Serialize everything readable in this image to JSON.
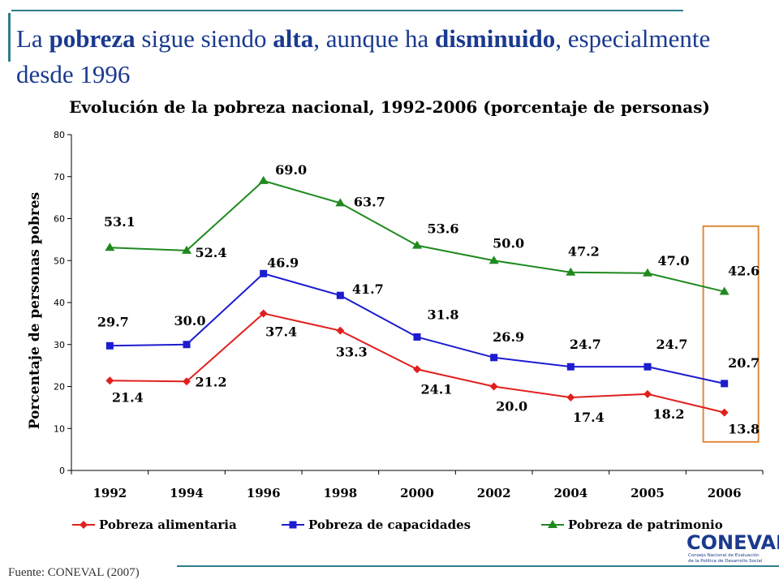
{
  "slide": {
    "headline_parts": [
      {
        "text": "La ",
        "bold": false
      },
      {
        "text": "pobreza",
        "bold": true
      },
      {
        "text": " sigue siendo ",
        "bold": false
      },
      {
        "text": "alta",
        "bold": true
      },
      {
        "text": ", aunque ha ",
        "bold": false
      },
      {
        "text": "disminuido",
        "bold": true
      },
      {
        "text": ", especialmente desde 1996",
        "bold": false
      }
    ],
    "source": "Fuente: CONEVAL (2007)",
    "logo": {
      "name": "CONEVAL",
      "subtitle_line1": "Consejo Nacional de Evaluación",
      "subtitle_line2": "de la Política de Desarrollo Social"
    }
  },
  "chart_data": {
    "type": "line",
    "title": "Evolución de la pobreza nacional, 1992-2006 (porcentaje de personas)",
    "xlabel": "",
    "ylabel": "Porcentaje de personas pobres",
    "categories": [
      "1992",
      "1994",
      "1996",
      "1998",
      "2000",
      "2002",
      "2004",
      "2005",
      "2006"
    ],
    "ylim": [
      0,
      80
    ],
    "yticks": [
      0,
      10,
      20,
      30,
      40,
      50,
      60,
      70,
      80
    ],
    "grid": false,
    "legend_position": "bottom",
    "highlight_category": "2006",
    "highlight_color": "#e08a3c",
    "series": [
      {
        "name": "Pobreza alimentaria",
        "color": "#e0201e",
        "marker": "diamond",
        "values": [
          21.4,
          21.2,
          37.4,
          33.3,
          24.1,
          20.0,
          17.4,
          18.2,
          13.8
        ],
        "labels": [
          "21.4",
          "21.2",
          "37.4",
          "33.3",
          "24.1",
          "20.0",
          "17.4",
          "18.2",
          "13.8"
        ]
      },
      {
        "name": "Pobreza de capacidades",
        "color": "#1c1cd0",
        "marker": "square",
        "values": [
          29.7,
          30.0,
          46.9,
          41.7,
          31.8,
          26.9,
          24.7,
          24.7,
          20.7
        ],
        "labels": [
          "29.7",
          "30.0",
          "46.9",
          "41.7",
          "31.8",
          "26.9",
          "24.7",
          "24.7",
          "20.7"
        ]
      },
      {
        "name": "Pobreza de patrimonio",
        "color": "#1e8a1e",
        "marker": "triangle",
        "values": [
          53.1,
          52.4,
          69.0,
          63.7,
          53.6,
          50.0,
          47.2,
          47.0,
          42.6
        ],
        "labels": [
          "53.1",
          "52.4",
          "69.0",
          "63.7",
          "53.6",
          "50.0",
          "47.2",
          "47.0",
          "42.6"
        ]
      }
    ]
  }
}
